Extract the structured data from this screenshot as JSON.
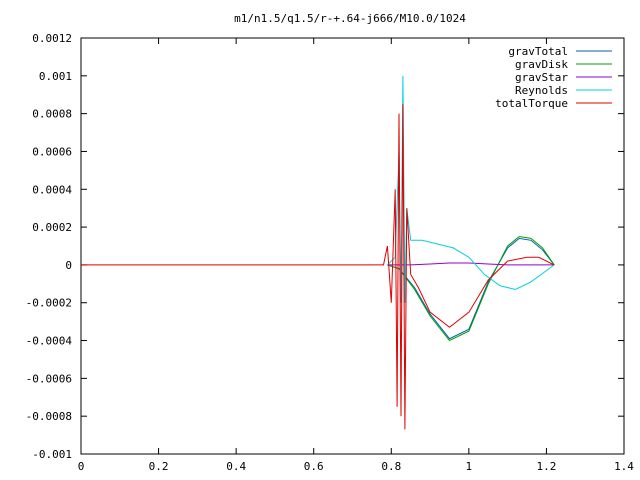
{
  "chart_data": {
    "type": "line",
    "title": "m1/n1.5/q1.5/r-+.64-j666/M10.0/1024",
    "xlabel": "",
    "ylabel": "",
    "xlim": [
      0,
      1.4
    ],
    "ylim": [
      -0.001,
      0.0012
    ],
    "xticks": [
      0,
      0.2,
      0.4,
      0.6,
      0.8,
      1,
      1.2,
      1.4
    ],
    "xtick_labels": [
      "0",
      "0.2",
      "0.4",
      "0.6",
      "0.8",
      "1",
      "1.2",
      "1.4"
    ],
    "yticks": [
      -0.001,
      -0.0008,
      -0.0006,
      -0.0004,
      -0.0002,
      0,
      0.0002,
      0.0004,
      0.0006,
      0.0008,
      0.001,
      0.0012
    ],
    "ytick_labels": [
      "-0.001",
      "-0.0008",
      "-0.0006",
      "-0.0004",
      "-0.0002",
      "0",
      "0.0002",
      "0.0004",
      "0.0006",
      "0.0008",
      "0.001",
      "0.0012"
    ],
    "grid": false,
    "legend_position": "top-right",
    "series": [
      {
        "name": "gravTotal",
        "color": "#0060ad",
        "x": [
          0.79,
          0.82,
          0.86,
          0.9,
          0.95,
          1.0,
          1.05,
          1.1,
          1.13,
          1.16,
          1.19,
          1.22
        ],
        "y": [
          0.0,
          -2e-05,
          -0.00012,
          -0.00026,
          -0.00039,
          -0.00034,
          -9e-05,
          9e-05,
          0.00014,
          0.00013,
          8e-05,
          0.0
        ]
      },
      {
        "name": "gravDisk",
        "color": "#009e00",
        "x": [
          0.79,
          0.82,
          0.86,
          0.9,
          0.95,
          1.0,
          1.05,
          1.1,
          1.13,
          1.16,
          1.19,
          1.22
        ],
        "y": [
          0.0,
          -2e-05,
          -0.00013,
          -0.00027,
          -0.0004,
          -0.00035,
          -0.0001,
          0.0001,
          0.00015,
          0.00014,
          9e-05,
          0.0
        ]
      },
      {
        "name": "gravStar",
        "color": "#9400d3",
        "x": [
          0.79,
          0.85,
          0.9,
          0.95,
          1.0,
          1.05,
          1.1,
          1.15,
          1.22
        ],
        "y": [
          0.0,
          0.0,
          5e-06,
          1e-05,
          1e-05,
          5e-06,
          0.0,
          0.0,
          0.0
        ]
      },
      {
        "name": "Reynolds",
        "color": "#00d0e0",
        "x": [
          0.79,
          0.81,
          0.82,
          0.825,
          0.83,
          0.835,
          0.84,
          0.85,
          0.88,
          0.92,
          0.96,
          1.0,
          1.04,
          1.08,
          1.12,
          1.16,
          1.2,
          1.22
        ],
        "y": [
          0.0,
          4e-05,
          0.0006,
          -0.0002,
          0.001,
          -0.0002,
          0.0003,
          0.00013,
          0.00013,
          0.00011,
          9e-05,
          4e-05,
          -5e-05,
          -0.00011,
          -0.00013,
          -9e-05,
          -3e-05,
          0.0
        ]
      },
      {
        "name": "totalTorque",
        "color": "#e00000",
        "x": [
          0.0,
          0.78,
          0.79,
          0.8,
          0.81,
          0.815,
          0.82,
          0.825,
          0.83,
          0.835,
          0.84,
          0.85,
          0.87,
          0.9,
          0.95,
          1.0,
          1.05,
          1.1,
          1.15,
          1.18,
          1.22
        ],
        "y": [
          0.0,
          0.0,
          0.0001,
          -0.0002,
          0.0004,
          -0.00075,
          0.0008,
          -0.0008,
          0.00085,
          -0.00087,
          0.0003,
          -5e-05,
          -0.00012,
          -0.00025,
          -0.00033,
          -0.00025,
          -8e-05,
          2e-05,
          4e-05,
          4e-05,
          0.0
        ]
      }
    ]
  }
}
